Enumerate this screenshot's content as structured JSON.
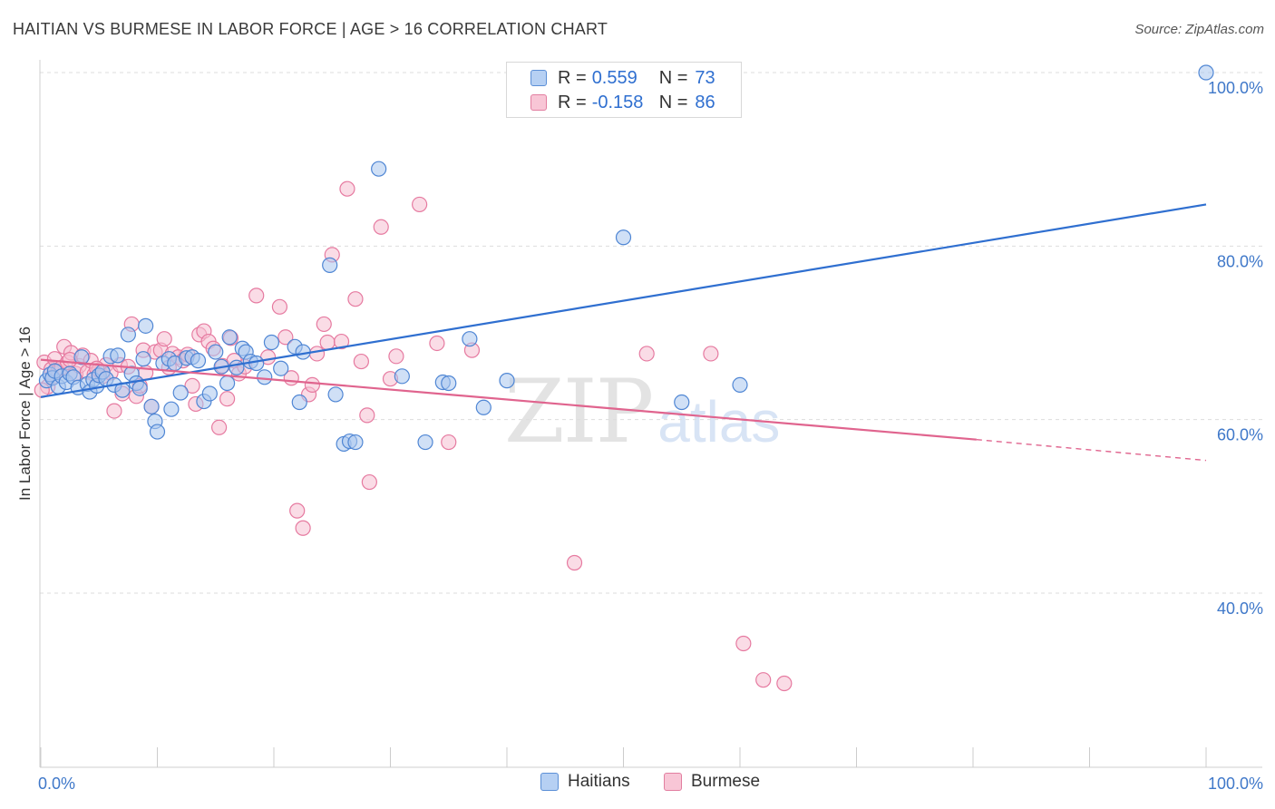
{
  "header": {
    "title": "HAITIAN VS BURMESE IN LABOR FORCE | AGE > 16 CORRELATION CHART",
    "source": "Source: ZipAtlas.com"
  },
  "watermark": {
    "zip": "ZIP",
    "atlas": "atlas"
  },
  "legend": {
    "haitians": {
      "r_label": "R =",
      "r_value": "0.559",
      "n_label": "N =",
      "n_value": "73",
      "name": "Haitians"
    },
    "burmese": {
      "r_label": "R =",
      "r_value": "-0.158",
      "n_label": "N =",
      "n_value": "86",
      "name": "Burmese"
    }
  },
  "colors": {
    "haitian_fill": "#a9c6ef",
    "haitian_stroke": "#4f86d4",
    "haitian_line": "#2f6fd0",
    "burmese_fill": "#f6bfd1",
    "burmese_stroke": "#e67aa0",
    "burmese_line": "#e0648e",
    "grid": "#dddddd",
    "tick_label": "#3f78c9"
  },
  "chart_data": {
    "type": "scatter",
    "title": "HAITIAN VS BURMESE IN LABOR FORCE | AGE > 16 CORRELATION CHART",
    "xlabel": "",
    "ylabel": "In Labor Force | Age > 16",
    "xlim": [
      0,
      100
    ],
    "ylim": [
      22,
      102
    ],
    "x_tick_labels": [
      {
        "value": 0,
        "label": "0.0%"
      },
      {
        "value": 100,
        "label": "100.0%"
      }
    ],
    "y_ticks": [
      {
        "value": 40,
        "label": "40.0%"
      },
      {
        "value": 60,
        "label": "60.0%"
      },
      {
        "value": 80,
        "label": "80.0%"
      },
      {
        "value": 100,
        "label": "100.0%"
      }
    ],
    "x_minor_ticks": [
      0,
      10,
      20,
      30,
      40,
      50,
      60,
      70,
      80,
      90,
      100
    ],
    "grid": true,
    "legend_position": "top-center",
    "series": [
      {
        "name": "Haitians",
        "R": 0.559,
        "N": 73,
        "trend": {
          "x0": 0,
          "y0": 62.6,
          "x1": 100,
          "y1": 84.8
        },
        "points": [
          [
            0.5,
            64.5
          ],
          [
            0.8,
            65.2
          ],
          [
            1.0,
            64.8
          ],
          [
            1.2,
            65.6
          ],
          [
            1.5,
            63.8
          ],
          [
            1.8,
            65.0
          ],
          [
            2.2,
            64.3
          ],
          [
            2.5,
            65.3
          ],
          [
            2.8,
            64.9
          ],
          [
            3.2,
            63.7
          ],
          [
            3.5,
            67.2
          ],
          [
            4.0,
            64.1
          ],
          [
            4.2,
            63.2
          ],
          [
            4.5,
            64.6
          ],
          [
            4.8,
            63.9
          ],
          [
            5.0,
            65.1
          ],
          [
            5.3,
            65.5
          ],
          [
            5.6,
            64.7
          ],
          [
            6.0,
            67.3
          ],
          [
            6.3,
            64.0
          ],
          [
            6.6,
            67.4
          ],
          [
            7.0,
            63.4
          ],
          [
            7.5,
            69.8
          ],
          [
            7.8,
            65.3
          ],
          [
            8.2,
            64.2
          ],
          [
            8.5,
            63.6
          ],
          [
            8.8,
            67.0
          ],
          [
            9.0,
            70.8
          ],
          [
            9.5,
            61.5
          ],
          [
            9.8,
            59.8
          ],
          [
            10.0,
            58.6
          ],
          [
            10.5,
            66.5
          ],
          [
            11.0,
            67.0
          ],
          [
            11.2,
            61.2
          ],
          [
            11.5,
            66.5
          ],
          [
            12.0,
            63.1
          ],
          [
            12.5,
            67.1
          ],
          [
            13.0,
            67.2
          ],
          [
            13.5,
            66.8
          ],
          [
            14.0,
            62.1
          ],
          [
            14.5,
            63.0
          ],
          [
            15.0,
            67.8
          ],
          [
            15.5,
            66.1
          ],
          [
            16.0,
            64.2
          ],
          [
            16.2,
            69.5
          ],
          [
            16.8,
            66.0
          ],
          [
            17.3,
            68.2
          ],
          [
            17.6,
            67.8
          ],
          [
            18.0,
            66.7
          ],
          [
            18.5,
            66.5
          ],
          [
            19.2,
            64.9
          ],
          [
            19.8,
            68.9
          ],
          [
            20.6,
            65.9
          ],
          [
            21.8,
            68.4
          ],
          [
            22.5,
            67.8
          ],
          [
            22.2,
            62.0
          ],
          [
            24.8,
            77.8
          ],
          [
            25.3,
            62.9
          ],
          [
            26.0,
            57.2
          ],
          [
            26.5,
            57.5
          ],
          [
            27.0,
            57.4
          ],
          [
            29.0,
            88.9
          ],
          [
            31.0,
            65.0
          ],
          [
            33.0,
            57.4
          ],
          [
            34.5,
            64.3
          ],
          [
            35.0,
            64.2
          ],
          [
            36.8,
            69.3
          ],
          [
            38.0,
            61.4
          ],
          [
            40.0,
            64.5
          ],
          [
            50.0,
            81.0
          ],
          [
            55.0,
            62.0
          ],
          [
            60.0,
            64.0
          ],
          [
            100.0,
            100.0
          ]
        ]
      },
      {
        "name": "Burmese",
        "R": -0.158,
        "N": 86,
        "trend": {
          "x0": 0,
          "y0": 66.9,
          "x1": 80.3,
          "y1": 57.7,
          "dash_to": {
            "x": 100,
            "y": 55.3
          }
        },
        "points": [
          [
            0.3,
            66.6
          ],
          [
            0.6,
            63.8
          ],
          [
            0.9,
            65.8
          ],
          [
            1.2,
            67.0
          ],
          [
            1.5,
            65.6
          ],
          [
            1.8,
            66.0
          ],
          [
            2.0,
            68.4
          ],
          [
            2.3,
            66.6
          ],
          [
            2.6,
            67.7
          ],
          [
            3.0,
            65.3
          ],
          [
            3.3,
            66.2
          ],
          [
            3.6,
            67.4
          ],
          [
            4.0,
            65.5
          ],
          [
            4.3,
            66.8
          ],
          [
            4.6,
            65.2
          ],
          [
            5.0,
            65.7
          ],
          [
            5.3,
            65.0
          ],
          [
            5.6,
            66.3
          ],
          [
            6.0,
            65.4
          ],
          [
            6.3,
            61.0
          ],
          [
            6.8,
            66.3
          ],
          [
            7.0,
            63.0
          ],
          [
            7.5,
            66.1
          ],
          [
            7.8,
            71.0
          ],
          [
            8.2,
            62.7
          ],
          [
            8.5,
            63.9
          ],
          [
            8.8,
            68.0
          ],
          [
            9.0,
            65.4
          ],
          [
            9.5,
            61.5
          ],
          [
            9.8,
            67.8
          ],
          [
            10.3,
            68.0
          ],
          [
            10.6,
            69.3
          ],
          [
            11.0,
            66.0
          ],
          [
            11.3,
            67.6
          ],
          [
            11.8,
            67.2
          ],
          [
            12.2,
            66.8
          ],
          [
            12.6,
            67.5
          ],
          [
            13.0,
            63.9
          ],
          [
            13.3,
            61.8
          ],
          [
            13.6,
            69.8
          ],
          [
            14.0,
            70.2
          ],
          [
            14.4,
            69.0
          ],
          [
            14.8,
            68.2
          ],
          [
            15.3,
            59.1
          ],
          [
            15.6,
            66.2
          ],
          [
            16.0,
            62.4
          ],
          [
            16.3,
            69.4
          ],
          [
            16.6,
            66.8
          ],
          [
            17.0,
            65.3
          ],
          [
            17.5,
            66.1
          ],
          [
            18.5,
            74.3
          ],
          [
            19.5,
            67.2
          ],
          [
            20.5,
            73.0
          ],
          [
            21.0,
            69.5
          ],
          [
            21.5,
            64.8
          ],
          [
            22.0,
            49.5
          ],
          [
            22.5,
            47.5
          ],
          [
            23.0,
            62.9
          ],
          [
            23.3,
            64.0
          ],
          [
            23.7,
            67.6
          ],
          [
            24.3,
            71.0
          ],
          [
            24.6,
            68.9
          ],
          [
            25.0,
            79.0
          ],
          [
            25.8,
            69.0
          ],
          [
            26.3,
            86.6
          ],
          [
            27.0,
            73.9
          ],
          [
            27.5,
            66.7
          ],
          [
            28.0,
            60.5
          ],
          [
            28.2,
            52.8
          ],
          [
            29.2,
            82.2
          ],
          [
            30.0,
            64.7
          ],
          [
            30.5,
            67.3
          ],
          [
            32.5,
            84.8
          ],
          [
            34.0,
            68.8
          ],
          [
            35.0,
            57.4
          ],
          [
            37.0,
            68.0
          ],
          [
            45.8,
            43.5
          ],
          [
            52.0,
            67.6
          ],
          [
            57.5,
            67.6
          ],
          [
            60.3,
            34.2
          ],
          [
            62.0,
            30.0
          ],
          [
            63.8,
            29.6
          ],
          [
            1.0,
            64.9
          ],
          [
            2.5,
            66.9
          ],
          [
            4.8,
            65.9
          ],
          [
            0.1,
            63.4
          ]
        ]
      }
    ]
  }
}
